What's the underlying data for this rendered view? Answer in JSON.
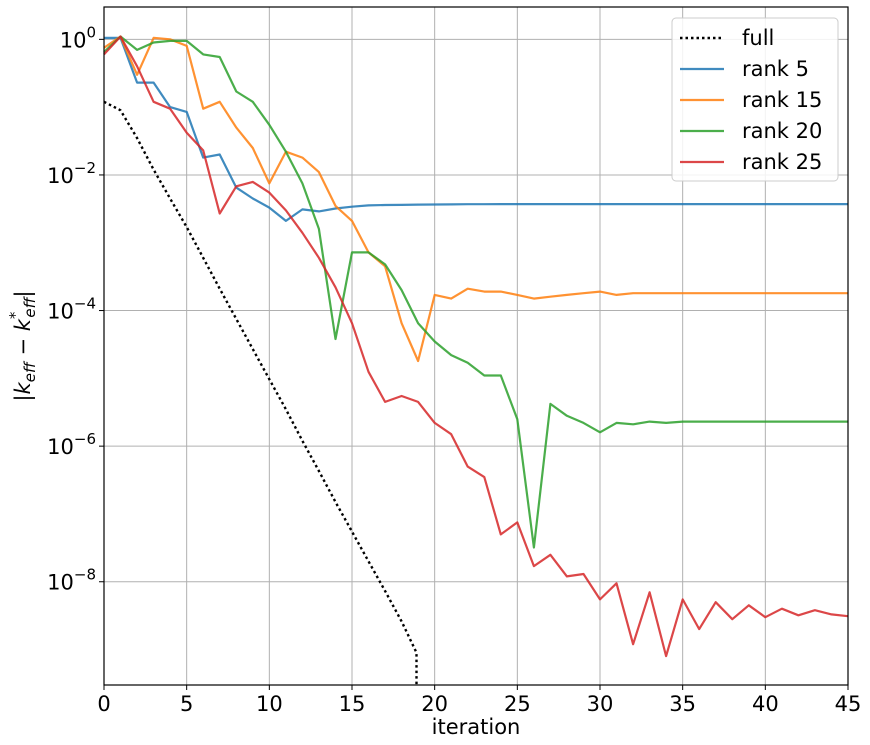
{
  "chart_data": {
    "type": "line",
    "xlabel": "iteration",
    "ylabel": "|k_eff − k*_eff|",
    "xlim": [
      0,
      45
    ],
    "ylim": [
      3e-10,
      3
    ],
    "yscale": "log",
    "grid": true,
    "legend_position": "top-right",
    "x_ticks": [
      0,
      5,
      10,
      15,
      20,
      25,
      30,
      35,
      40,
      45
    ],
    "y_ticks": [
      {
        "value": 1,
        "base": "10",
        "exp": "0"
      },
      {
        "value": 0.01,
        "base": "10",
        "exp": "−2"
      },
      {
        "value": 0.0001,
        "base": "10",
        "exp": "−4"
      },
      {
        "value": 1e-06,
        "base": "10",
        "exp": "−6"
      },
      {
        "value": 1e-08,
        "base": "10",
        "exp": "−8"
      }
    ],
    "series": [
      {
        "name": "full",
        "color": "#000000",
        "style": "dotted",
        "x": [
          0,
          1,
          2,
          3,
          4,
          5,
          6,
          7,
          8,
          9,
          10,
          11,
          12,
          13,
          14,
          15,
          16,
          17,
          18,
          18.9,
          18.9
        ],
        "y": [
          0.12,
          0.09,
          0.035,
          0.012,
          0.0045,
          0.0017,
          0.0006,
          0.00021,
          7.5e-05,
          2.7e-05,
          9.7e-06,
          3.5e-06,
          1.2e-06,
          4.3e-07,
          1.5e-07,
          5.5e-08,
          2e-08,
          7.3e-09,
          2.6e-09,
          9e-10,
          3e-10
        ]
      },
      {
        "name": "rank 5",
        "color": "#1f77b4",
        "style": "solid",
        "x": [
          0,
          1,
          2,
          3,
          4,
          5,
          6,
          7,
          8,
          9,
          10,
          11,
          12,
          13,
          14,
          15,
          16,
          17,
          18,
          19,
          20,
          21,
          22,
          23,
          24,
          25,
          26,
          27,
          28,
          29,
          30,
          31,
          32,
          33,
          34,
          35,
          36,
          37,
          38,
          39,
          40,
          41,
          42,
          43,
          44,
          45
        ],
        "y": [
          1.05,
          1.05,
          0.23,
          0.23,
          0.1,
          0.085,
          0.018,
          0.02,
          0.0065,
          0.0045,
          0.0033,
          0.0021,
          0.0031,
          0.0029,
          0.0032,
          0.0034,
          0.00355,
          0.0036,
          0.00362,
          0.00365,
          0.00367,
          0.00368,
          0.0037,
          0.0037,
          0.00371,
          0.00372,
          0.00372,
          0.00372,
          0.00372,
          0.00372,
          0.00372,
          0.00372,
          0.00372,
          0.00372,
          0.00372,
          0.00372,
          0.00372,
          0.00372,
          0.00372,
          0.00372,
          0.00372,
          0.00372,
          0.00372,
          0.00372,
          0.00372,
          0.00372
        ]
      },
      {
        "name": "rank 15",
        "color": "#ff7f0e",
        "style": "solid",
        "x": [
          0,
          1,
          2,
          3,
          4,
          5,
          6,
          7,
          8,
          9,
          10,
          11,
          12,
          13,
          14,
          15,
          16,
          17,
          18,
          19,
          20,
          21,
          22,
          23,
          24,
          25,
          26,
          27,
          28,
          29,
          30,
          31,
          32,
          33,
          34,
          35,
          36,
          37,
          38,
          39,
          40,
          41,
          42,
          43,
          44,
          45
        ],
        "y": [
          0.75,
          1.1,
          0.3,
          1.05,
          1.0,
          0.8,
          0.095,
          0.12,
          0.05,
          0.025,
          0.0075,
          0.022,
          0.018,
          0.011,
          0.0035,
          0.0021,
          0.00072,
          0.00045,
          6.5e-05,
          1.8e-05,
          0.00017,
          0.00015,
          0.00021,
          0.00019,
          0.00019,
          0.00017,
          0.00015,
          0.00016,
          0.00017,
          0.00018,
          0.00019,
          0.00017,
          0.00018,
          0.00018,
          0.00018,
          0.00018,
          0.00018,
          0.00018,
          0.00018,
          0.00018,
          0.00018,
          0.00018,
          0.00018,
          0.00018,
          0.00018,
          0.00018
        ]
      },
      {
        "name": "rank 20",
        "color": "#2ca02c",
        "style": "solid",
        "x": [
          0,
          1,
          2,
          3,
          4,
          5,
          6,
          7,
          8,
          9,
          10,
          11,
          12,
          13,
          14,
          15,
          16,
          17,
          18,
          19,
          20,
          21,
          22,
          23,
          24,
          25,
          26,
          27,
          28,
          29,
          30,
          31,
          32,
          33,
          34,
          35,
          36,
          37,
          38,
          39,
          40,
          41,
          42,
          43,
          44,
          45
        ],
        "y": [
          0.65,
          1.1,
          0.7,
          0.9,
          0.95,
          0.95,
          0.6,
          0.55,
          0.17,
          0.12,
          0.055,
          0.022,
          0.0075,
          0.0016,
          3.8e-05,
          0.00072,
          0.00072,
          0.00048,
          0.0002,
          6.5e-05,
          3.5e-05,
          2.2e-05,
          1.7e-05,
          1.1e-05,
          1.1e-05,
          2.5e-06,
          3.2e-08,
          4.2e-06,
          2.8e-06,
          2.2e-06,
          1.6e-06,
          2.2e-06,
          2.1e-06,
          2.3e-06,
          2.2e-06,
          2.3e-06,
          2.3e-06,
          2.3e-06,
          2.3e-06,
          2.3e-06,
          2.3e-06,
          2.3e-06,
          2.3e-06,
          2.3e-06,
          2.3e-06,
          2.3e-06
        ]
      },
      {
        "name": "rank 25",
        "color": "#d62728",
        "style": "solid",
        "x": [
          0,
          1,
          2,
          3,
          4,
          5,
          6,
          7,
          8,
          9,
          10,
          11,
          12,
          13,
          14,
          15,
          16,
          17,
          18,
          19,
          20,
          21,
          22,
          23,
          24,
          25,
          26,
          27,
          28,
          29,
          30,
          31,
          32,
          33,
          34,
          35,
          36,
          37,
          38,
          39,
          40,
          41,
          42,
          43,
          44,
          45
        ],
        "y": [
          0.6,
          1.1,
          0.4,
          0.12,
          0.095,
          0.042,
          0.023,
          0.0027,
          0.0068,
          0.0079,
          0.0055,
          0.003,
          0.0014,
          0.0006,
          0.00022,
          6.5e-05,
          1.25e-05,
          4.5e-06,
          5.5e-06,
          4.5e-06,
          2.2e-06,
          1.5e-06,
          5e-07,
          3.5e-07,
          5e-08,
          7.5e-08,
          1.7e-08,
          2.5e-08,
          1.2e-08,
          1.3e-08,
          5.5e-09,
          9.5e-09,
          1.2e-09,
          7e-09,
          8e-10,
          5.5e-09,
          2e-09,
          5e-09,
          2.8e-09,
          4.5e-09,
          3e-09,
          4e-09,
          3.2e-09,
          3.8e-09,
          3.3e-09,
          3.1e-09
        ]
      }
    ]
  }
}
